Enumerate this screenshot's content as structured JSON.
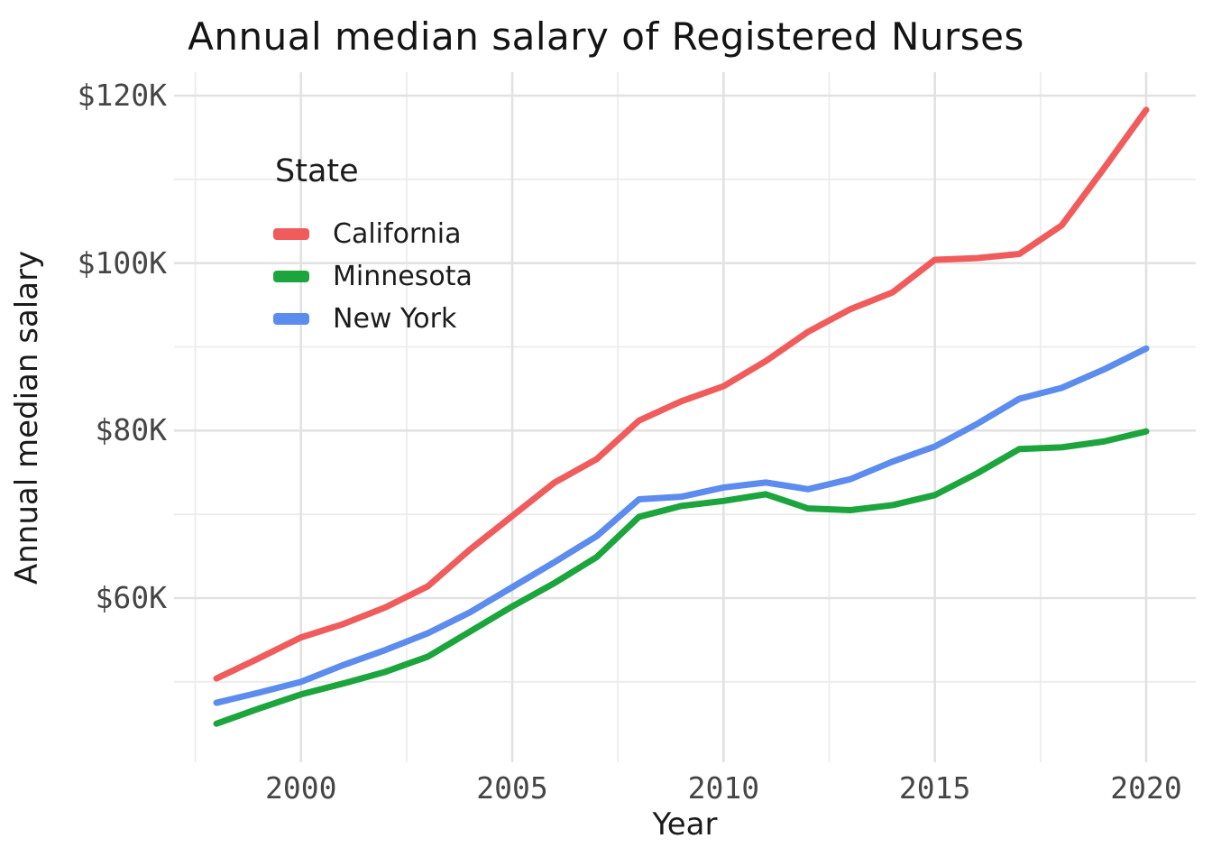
{
  "title": "Annual median salary of Registered Nurses",
  "chart_data": {
    "type": "line",
    "title": "Annual median salary of Registered Nurses",
    "xlabel": "Year",
    "ylabel": "Annual median salary",
    "legend_title": "State",
    "legend_position": "inside-upper-left",
    "grid": true,
    "x": [
      1998,
      1999,
      2000,
      2001,
      2002,
      2003,
      2004,
      2005,
      2006,
      2007,
      2008,
      2009,
      2010,
      2011,
      2012,
      2013,
      2014,
      2015,
      2016,
      2017,
      2018,
      2019,
      2020
    ],
    "series": [
      {
        "name": "California",
        "color": "#F05C5C",
        "values": [
          50400,
          52800,
          55300,
          56900,
          58900,
          61400,
          65800,
          69800,
          73800,
          76600,
          81200,
          83500,
          85300,
          88300,
          91800,
          94500,
          96500,
          100400,
          100600,
          101100,
          104500,
          111300,
          118300
        ]
      },
      {
        "name": "Minnesota",
        "color": "#1CA53C",
        "values": [
          45000,
          46800,
          48500,
          49800,
          51200,
          53000,
          56000,
          59000,
          61800,
          64900,
          69700,
          71000,
          71600,
          72400,
          70700,
          70500,
          71100,
          72300,
          74900,
          77800,
          78000,
          78700,
          79900
        ]
      },
      {
        "name": "New York",
        "color": "#5C8CEE",
        "values": [
          47500,
          48700,
          50000,
          52000,
          53800,
          55800,
          58300,
          61300,
          64300,
          67400,
          71800,
          72100,
          73200,
          73800,
          73000,
          74200,
          76300,
          78100,
          80800,
          83800,
          85100,
          87300,
          89800
        ]
      }
    ],
    "y_ticks": {
      "labels": [
        "$120K",
        "$100K",
        "$80K",
        "$60K"
      ],
      "values": [
        120000,
        100000,
        80000,
        60000
      ],
      "minor_values": [
        110000,
        90000,
        70000,
        50000
      ]
    },
    "x_ticks": {
      "labels": [
        "2000",
        "2005",
        "2010",
        "2015",
        "2020"
      ],
      "values": [
        2000,
        2005,
        2010,
        2015,
        2020
      ],
      "minor_values": [
        1997.5,
        2002.5,
        2007.5,
        2012.5,
        2017.5
      ]
    },
    "ylim": [
      40600,
      122800
    ],
    "xlim": [
      1996.9,
      2021.2
    ],
    "grid_major_color": "#E2E2E2",
    "grid_minor_color": "#ECECEC"
  }
}
